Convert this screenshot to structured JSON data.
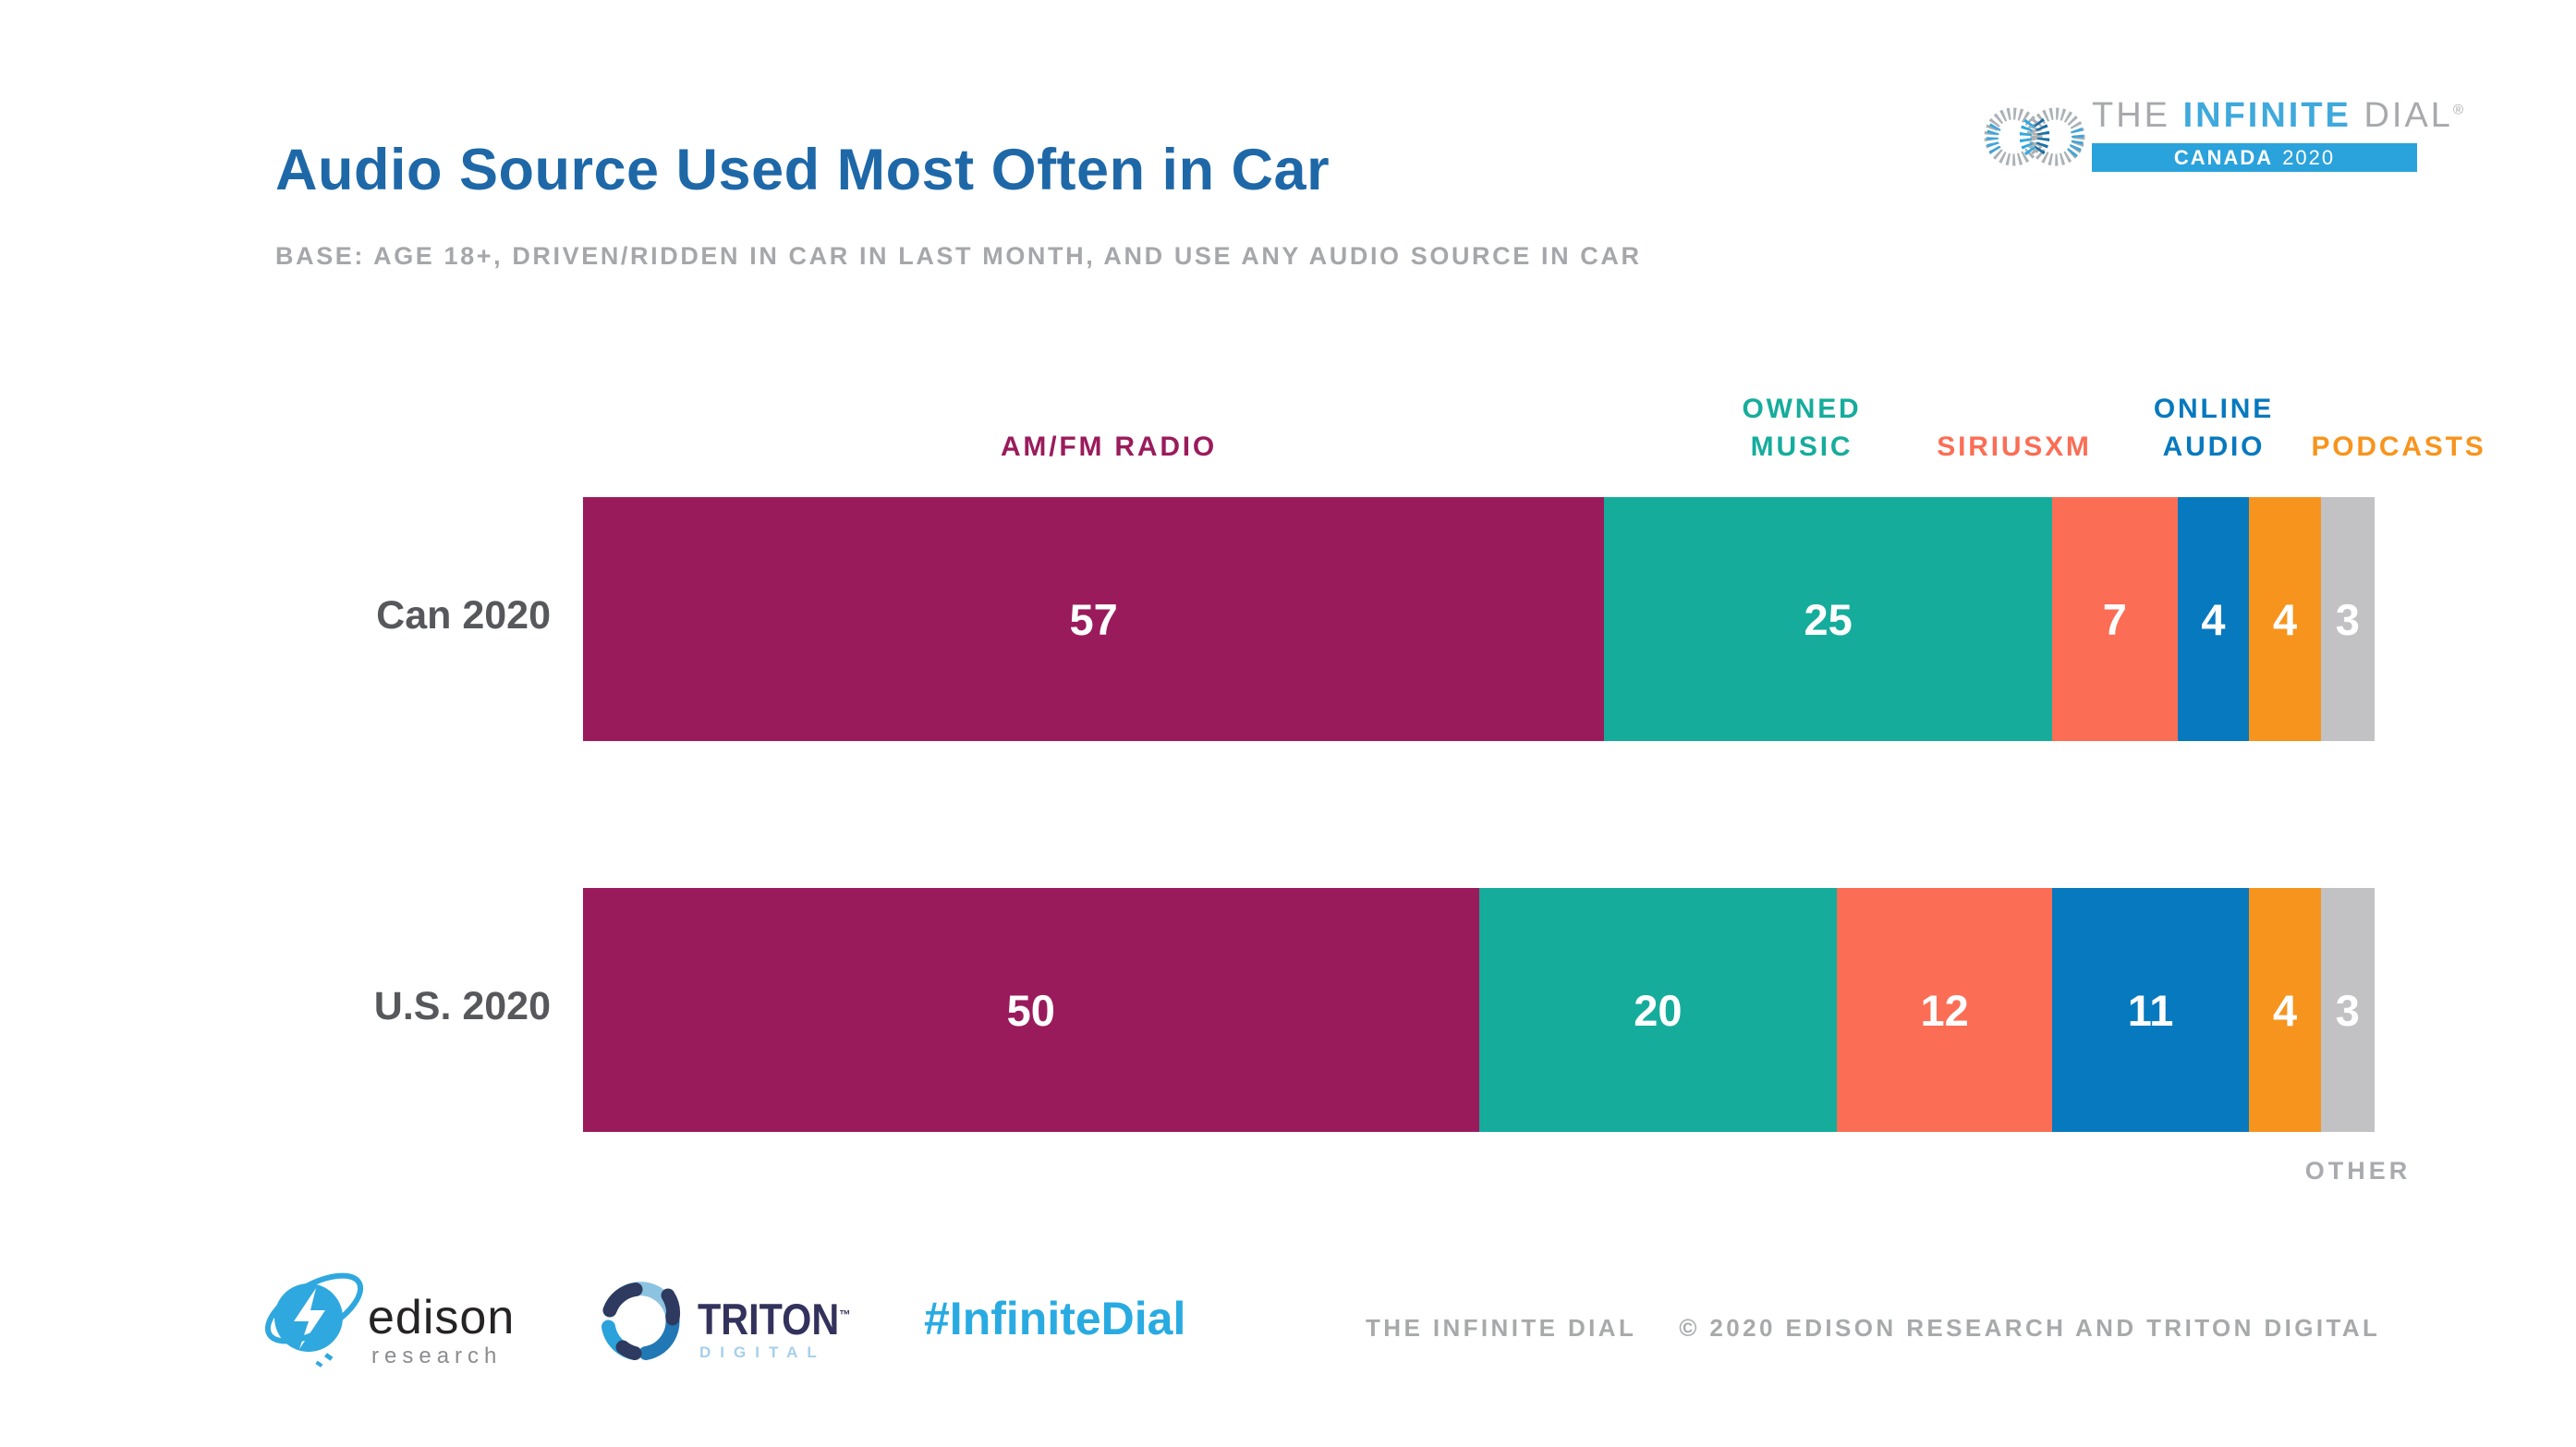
{
  "slide": {
    "title": "Audio Source Used Most Often in Car",
    "subtitle": "BASE: AGE 18+, DRIVEN/RIDDEN IN CAR IN LAST MONTH, AND USE ANY AUDIO SOURCE IN CAR",
    "title_color": "#1E68A8",
    "subtitle_color": "#A5A7AA"
  },
  "brand": {
    "the": "THE",
    "infinite": "INFINITE",
    "dial": "DIAL",
    "registered": "®",
    "banner_country": "CANADA",
    "banner_year": "2020",
    "banner_color": "#2AA2DC",
    "infinite_color": "#3FA9DC"
  },
  "chart_data": {
    "type": "bar",
    "stacked": true,
    "orientation": "horizontal",
    "xlim": [
      0,
      100
    ],
    "grid": false,
    "legend_position": "series labels above first bar; OTHER labeled below last bar",
    "value_labels": "white, centered inside segments",
    "categories": [
      "Can 2020",
      "U.S. 2020"
    ],
    "series": [
      {
        "name": "AM/FM RADIO",
        "color": "#9A1B5C",
        "values": [
          57,
          50
        ]
      },
      {
        "name": "OWNED MUSIC",
        "color": "#16AC9C",
        "values": [
          25,
          20
        ]
      },
      {
        "name": "SIRIUSXM",
        "color": "#FB6D55",
        "values": [
          7,
          12
        ]
      },
      {
        "name": "ONLINE AUDIO",
        "color": "#0779BE",
        "values": [
          4,
          11
        ]
      },
      {
        "name": "PODCASTS",
        "color": "#F7941D",
        "values": [
          4,
          4
        ]
      },
      {
        "name": "OTHER",
        "color": "#C2C2C4",
        "values": [
          3,
          3
        ]
      }
    ]
  },
  "footer": {
    "edison_name": "edison",
    "edison_sub": "research",
    "triton_name": "TRITON",
    "triton_tm": "™",
    "triton_sub": "DIGITAL",
    "hashtag": "#InfiniteDial",
    "hashtag_color": "#29ABE2",
    "credit_left": "THE INFINITE DIAL",
    "credit_right": "© 2020 EDISON RESEARCH AND TRITON DIGITAL"
  }
}
